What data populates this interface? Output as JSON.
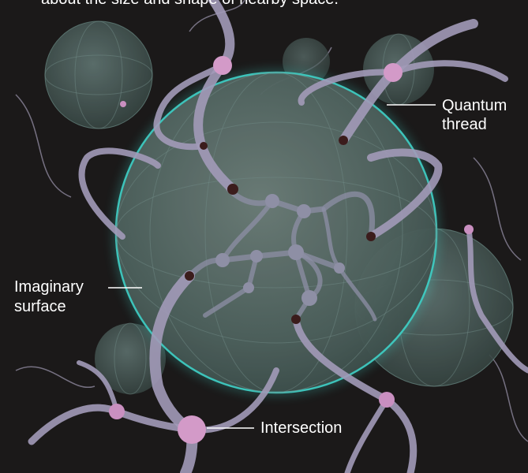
{
  "caption": "about the size and shape of nearby space.",
  "labels": {
    "quantum_thread": [
      "Quantum",
      "thread"
    ],
    "imaginary_surface": [
      "Imaginary",
      "surface"
    ],
    "intersection": "Intersection"
  }
}
